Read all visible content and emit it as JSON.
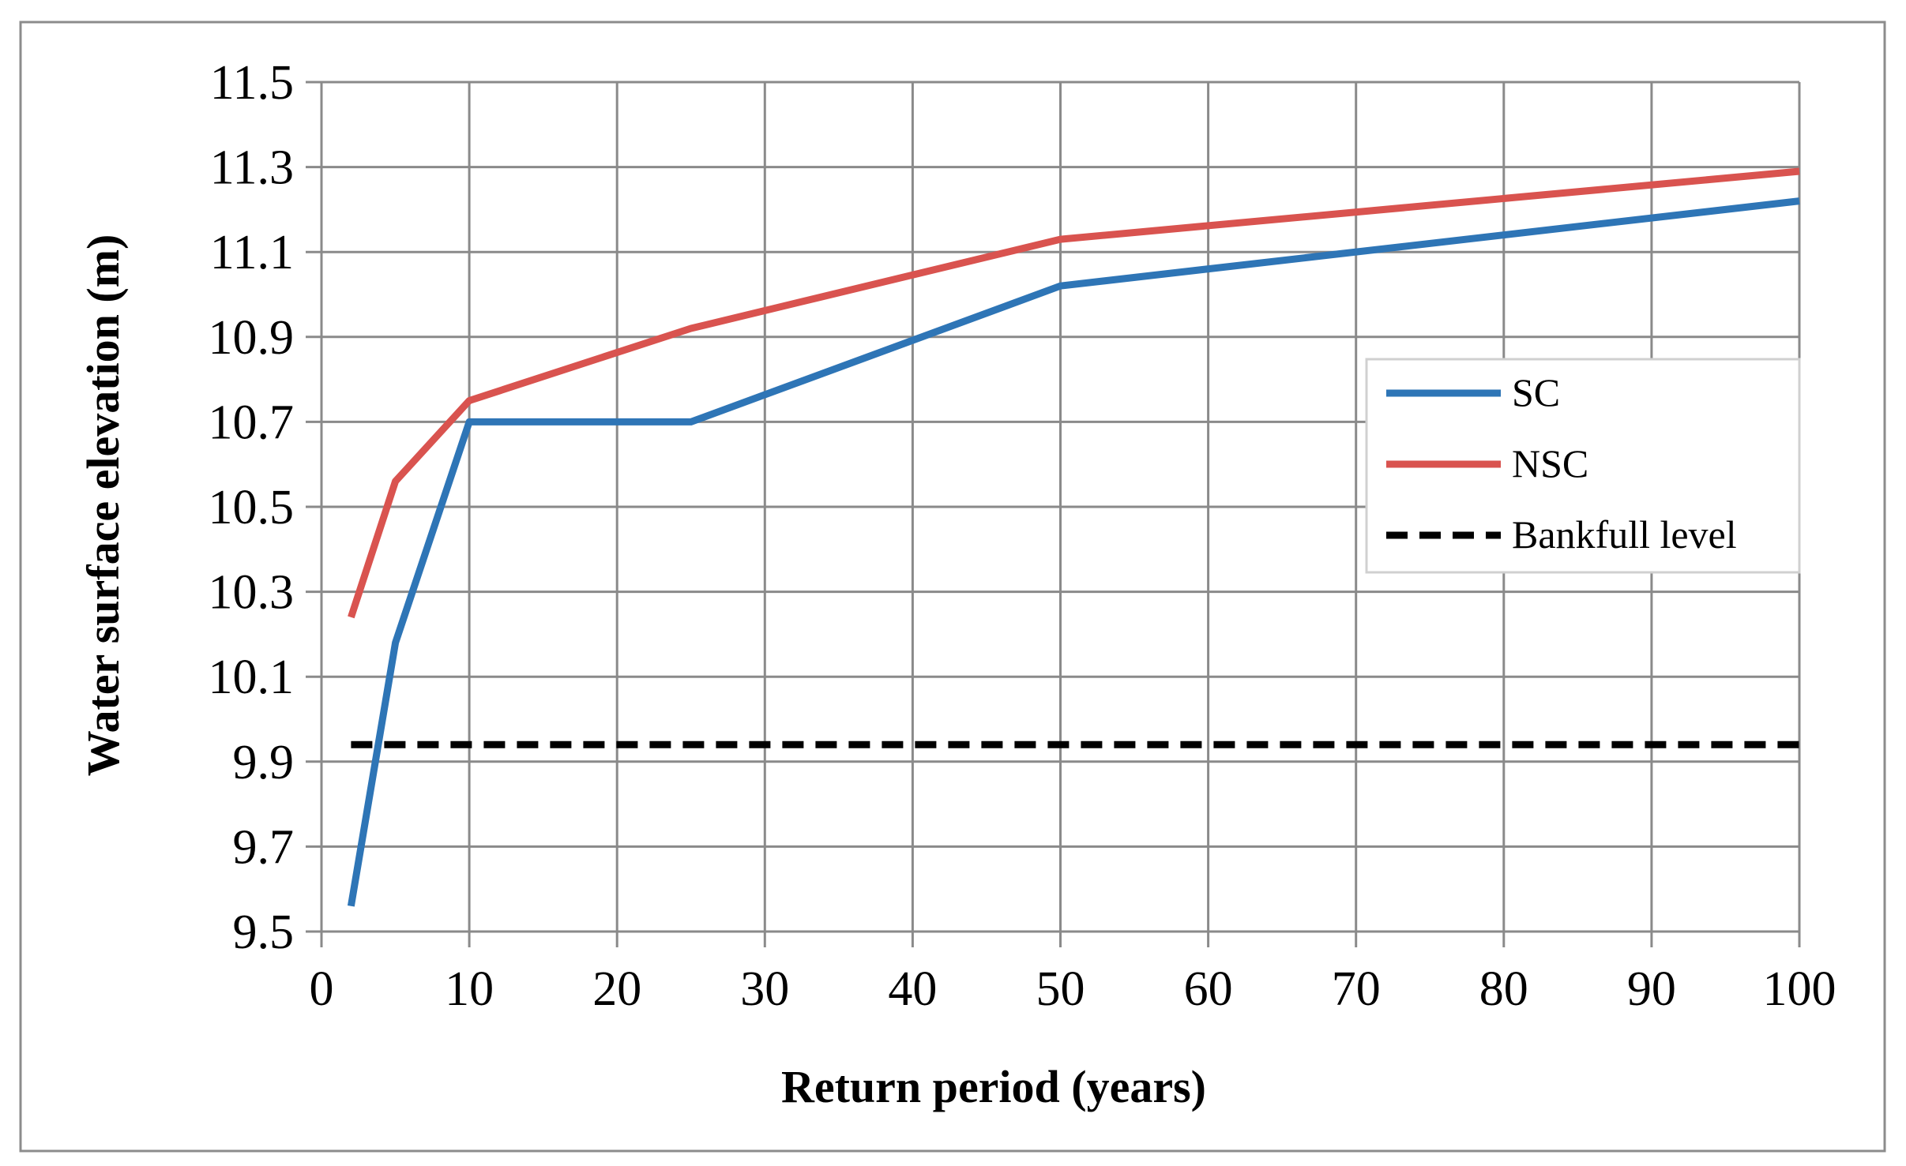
{
  "chart_data": {
    "type": "line",
    "title": "",
    "xlabel": "Return period (years)",
    "ylabel": "Water surface elevation (m)",
    "xlim": [
      0,
      100
    ],
    "ylim": [
      9.5,
      11.5
    ],
    "xticks": [
      "0",
      "10",
      "20",
      "30",
      "40",
      "50",
      "60",
      "70",
      "80",
      "90",
      "100"
    ],
    "yticks": [
      "9.5",
      "9.7",
      "9.9",
      "10.1",
      "10.3",
      "10.5",
      "10.7",
      "10.9",
      "11.1",
      "11.3",
      "11.5"
    ],
    "grid": true,
    "legend_position": "right",
    "series": [
      {
        "name": "SC",
        "color": "#2e75b6",
        "style": "solid",
        "x": [
          2,
          5,
          10,
          25,
          50,
          100
        ],
        "y": [
          9.56,
          10.18,
          10.7,
          10.7,
          11.02,
          11.22
        ]
      },
      {
        "name": "NSC",
        "color": "#d9534f",
        "style": "solid",
        "x": [
          2,
          5,
          10,
          25,
          50,
          100
        ],
        "y": [
          10.24,
          10.56,
          10.75,
          10.92,
          11.13,
          11.29
        ]
      },
      {
        "name": "Bankfull level",
        "color": "#000000",
        "style": "dashed",
        "x": [
          2,
          100
        ],
        "y": [
          9.94,
          9.94
        ]
      }
    ]
  }
}
